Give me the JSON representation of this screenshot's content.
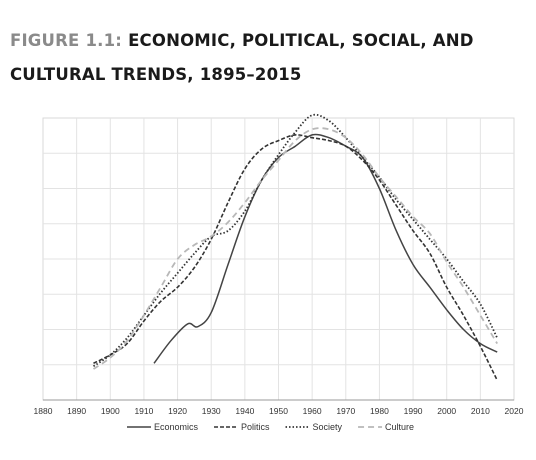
{
  "caption": {
    "prefix": "FIGURE 1.1:",
    "title": "ECONOMIC, POLITICAL, SOCIAL, AND CULTURAL TRENDS, 1895–2015"
  },
  "chart_data": {
    "type": "line",
    "xlim": [
      1880,
      2020
    ],
    "ylim": [
      0,
      10
    ],
    "x_ticks": [
      1880,
      1890,
      1900,
      1910,
      1920,
      1930,
      1940,
      1950,
      1960,
      1970,
      1980,
      1990,
      2000,
      2010,
      2020
    ],
    "y_gridlines": 7,
    "grid": true,
    "legend_position": "bottom",
    "series": [
      {
        "name": "Economics",
        "style": "solid",
        "color": "#444444",
        "points": [
          [
            1913,
            1.3
          ],
          [
            1918,
            2.1
          ],
          [
            1923,
            2.7
          ],
          [
            1926,
            2.6
          ],
          [
            1930,
            3.1
          ],
          [
            1935,
            4.8
          ],
          [
            1940,
            6.5
          ],
          [
            1945,
            7.8
          ],
          [
            1950,
            8.6
          ],
          [
            1955,
            9.0
          ],
          [
            1960,
            9.4
          ],
          [
            1965,
            9.3
          ],
          [
            1970,
            9.0
          ],
          [
            1975,
            8.6
          ],
          [
            1980,
            7.5
          ],
          [
            1985,
            6.0
          ],
          [
            1990,
            4.8
          ],
          [
            1995,
            4.0
          ],
          [
            2000,
            3.2
          ],
          [
            2005,
            2.5
          ],
          [
            2010,
            2.0
          ],
          [
            2015,
            1.7
          ]
        ]
      },
      {
        "name": "Politics",
        "style": "dashed",
        "color": "#333333",
        "points": [
          [
            1895,
            1.3
          ],
          [
            1900,
            1.6
          ],
          [
            1905,
            2.0
          ],
          [
            1910,
            2.8
          ],
          [
            1915,
            3.5
          ],
          [
            1920,
            4.0
          ],
          [
            1925,
            4.7
          ],
          [
            1930,
            5.7
          ],
          [
            1935,
            7.0
          ],
          [
            1940,
            8.2
          ],
          [
            1945,
            8.9
          ],
          [
            1950,
            9.2
          ],
          [
            1955,
            9.4
          ],
          [
            1960,
            9.3
          ],
          [
            1965,
            9.2
          ],
          [
            1970,
            9.0
          ],
          [
            1975,
            8.5
          ],
          [
            1980,
            7.8
          ],
          [
            1985,
            6.9
          ],
          [
            1990,
            6.0
          ],
          [
            1995,
            5.2
          ],
          [
            2000,
            4.0
          ],
          [
            2005,
            3.0
          ],
          [
            2010,
            1.9
          ],
          [
            2015,
            0.7
          ]
        ]
      },
      {
        "name": "Society",
        "style": "dotted",
        "color": "#333333",
        "points": [
          [
            1895,
            1.2
          ],
          [
            1900,
            1.6
          ],
          [
            1905,
            2.2
          ],
          [
            1910,
            3.0
          ],
          [
            1915,
            3.8
          ],
          [
            1920,
            4.5
          ],
          [
            1925,
            5.2
          ],
          [
            1930,
            5.8
          ],
          [
            1935,
            6.0
          ],
          [
            1940,
            6.7
          ],
          [
            1945,
            7.8
          ],
          [
            1950,
            8.7
          ],
          [
            1955,
            9.5
          ],
          [
            1960,
            10.1
          ],
          [
            1965,
            9.9
          ],
          [
            1970,
            9.3
          ],
          [
            1975,
            8.6
          ],
          [
            1980,
            7.9
          ],
          [
            1985,
            7.1
          ],
          [
            1990,
            6.4
          ],
          [
            1995,
            5.7
          ],
          [
            2000,
            5.0
          ],
          [
            2005,
            4.2
          ],
          [
            2010,
            3.4
          ],
          [
            2015,
            2.2
          ]
        ]
      },
      {
        "name": "Culture",
        "style": "dashed-light",
        "color": "#b8b8b8",
        "points": [
          [
            1895,
            1.1
          ],
          [
            1900,
            1.5
          ],
          [
            1905,
            2.1
          ],
          [
            1910,
            3.0
          ],
          [
            1915,
            4.0
          ],
          [
            1920,
            5.0
          ],
          [
            1925,
            5.5
          ],
          [
            1930,
            5.8
          ],
          [
            1935,
            6.3
          ],
          [
            1940,
            7.0
          ],
          [
            1945,
            7.8
          ],
          [
            1950,
            8.5
          ],
          [
            1955,
            9.2
          ],
          [
            1960,
            9.6
          ],
          [
            1965,
            9.6
          ],
          [
            1970,
            9.3
          ],
          [
            1975,
            8.7
          ],
          [
            1980,
            7.9
          ],
          [
            1985,
            7.2
          ],
          [
            1990,
            6.5
          ],
          [
            1995,
            5.9
          ],
          [
            2000,
            4.9
          ],
          [
            2005,
            4.0
          ],
          [
            2010,
            3.0
          ],
          [
            2015,
            2.0
          ]
        ]
      }
    ]
  }
}
